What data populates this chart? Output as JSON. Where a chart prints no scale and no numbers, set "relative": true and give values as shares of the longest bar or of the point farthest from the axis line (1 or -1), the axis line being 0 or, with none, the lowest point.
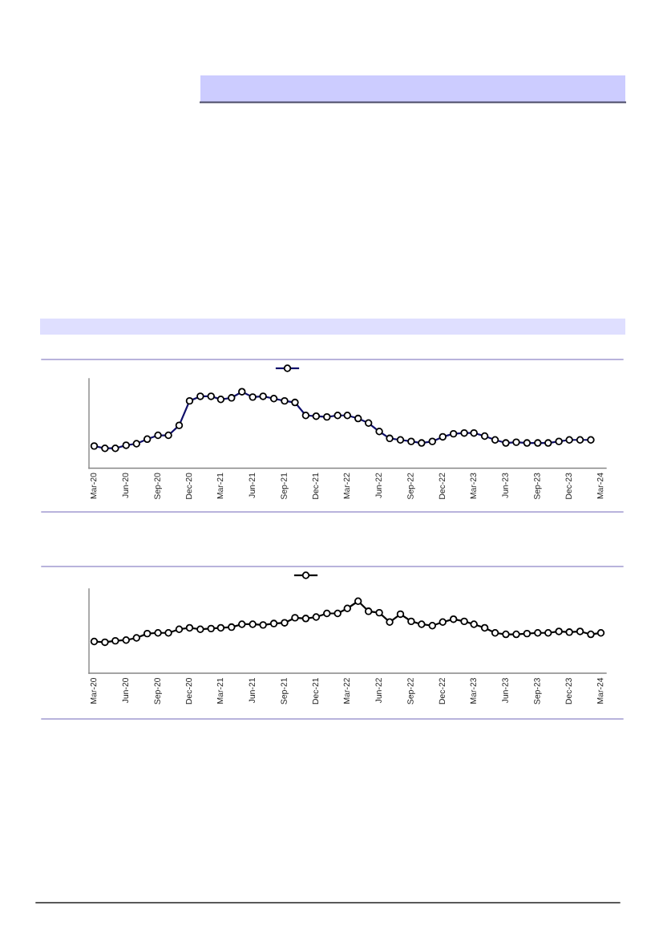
{
  "chart_data": [
    {
      "type": "line",
      "relative": true,
      "marker": "circle",
      "tick_labels": "x",
      "x": [
        "2020-03",
        "2020-04",
        "2020-05",
        "2020-06",
        "2020-07",
        "2020-08",
        "2020-09",
        "2020-10",
        "2020-11",
        "2020-12",
        "2021-01",
        "2021-02",
        "2021-03",
        "2021-04",
        "2021-05",
        "2021-06",
        "2021-07",
        "2021-08",
        "2021-09",
        "2021-10",
        "2021-11",
        "2021-12",
        "2022-01",
        "2022-02",
        "2022-03",
        "2022-04",
        "2022-05",
        "2022-06",
        "2022-07",
        "2022-08",
        "2022-09",
        "2022-10",
        "2022-11",
        "2022-12",
        "2023-01",
        "2023-02",
        "2023-03",
        "2023-04",
        "2023-05",
        "2023-06",
        "2023-07",
        "2023-08",
        "2023-09",
        "2023-10",
        "2023-11",
        "2023-12",
        "2024-01",
        "2024-02"
      ],
      "xlim": [
        "2020-02-15",
        "2024-03-16"
      ],
      "xticks": [
        {
          "value": "2020-03",
          "label": "Mar-20"
        },
        {
          "value": "2020-06",
          "label": "Jun-20"
        },
        {
          "value": "2020-09",
          "label": "Sep-20"
        },
        {
          "value": "2020-12",
          "label": "Dec-20"
        },
        {
          "value": "2021-03",
          "label": "Mar-21"
        },
        {
          "value": "2021-06",
          "label": "Jun-21"
        },
        {
          "value": "2021-09",
          "label": "Sep-21"
        },
        {
          "value": "2021-12",
          "label": "Dec-21"
        },
        {
          "value": "2022-03",
          "label": "Mar-22"
        },
        {
          "value": "2022-06",
          "label": "Jun-22"
        },
        {
          "value": "2022-09",
          "label": "Sep-22"
        },
        {
          "value": "2022-12",
          "label": "Dec-22"
        },
        {
          "value": "2023-03",
          "label": "Mar-23"
        },
        {
          "value": "2023-06",
          "label": "Jun-23"
        },
        {
          "value": "2023-09",
          "label": "Sep-23"
        },
        {
          "value": "2023-12",
          "label": "Dec-23"
        },
        {
          "value": "2024-03",
          "label": "Mar-24"
        }
      ],
      "series": [
        {
          "color": "#10106a",
          "values": [
            0.29,
            0.26,
            0.26,
            0.3,
            0.32,
            0.38,
            0.43,
            0.43,
            0.56,
            0.88,
            0.94,
            0.94,
            0.9,
            0.92,
            1.0,
            0.93,
            0.94,
            0.91,
            0.88,
            0.86,
            0.69,
            0.68,
            0.67,
            0.69,
            0.69,
            0.65,
            0.59,
            0.48,
            0.39,
            0.37,
            0.35,
            0.33,
            0.35,
            0.41,
            0.45,
            0.46,
            0.46,
            0.42,
            0.37,
            0.33,
            0.34,
            0.33,
            0.33,
            0.33,
            0.35,
            0.37,
            0.37,
            0.37
          ]
        }
      ]
    },
    {
      "type": "line",
      "relative": true,
      "marker": "circle",
      "tick_labels": "x",
      "x": [
        "2020-03",
        "2020-04",
        "2020-05",
        "2020-06",
        "2020-07",
        "2020-08",
        "2020-09",
        "2020-10",
        "2020-11",
        "2020-12",
        "2021-01",
        "2021-02",
        "2021-03",
        "2021-04",
        "2021-05",
        "2021-06",
        "2021-07",
        "2021-08",
        "2021-09",
        "2021-10",
        "2021-11",
        "2021-12",
        "2022-01",
        "2022-02",
        "2022-03",
        "2022-04",
        "2022-05",
        "2022-06",
        "2022-07",
        "2022-08",
        "2022-09",
        "2022-10",
        "2022-11",
        "2022-12",
        "2023-01",
        "2023-02",
        "2023-03",
        "2023-04",
        "2023-05",
        "2023-06",
        "2023-07",
        "2023-08",
        "2023-09",
        "2023-10",
        "2023-11",
        "2023-12",
        "2024-01",
        "2024-02",
        "2024-03"
      ],
      "xlim": [
        "2020-02-15",
        "2024-03-16"
      ],
      "xticks": [
        {
          "value": "2020-03",
          "label": "Mar-20"
        },
        {
          "value": "2020-06",
          "label": "Jun-20"
        },
        {
          "value": "2020-09",
          "label": "Sep-20"
        },
        {
          "value": "2020-12",
          "label": "Dec-20"
        },
        {
          "value": "2021-03",
          "label": "Mar-21"
        },
        {
          "value": "2021-06",
          "label": "Jun-21"
        },
        {
          "value": "2021-09",
          "label": "Sep-21"
        },
        {
          "value": "2021-12",
          "label": "Dec-21"
        },
        {
          "value": "2022-03",
          "label": "Mar-22"
        },
        {
          "value": "2022-06",
          "label": "Jun-22"
        },
        {
          "value": "2022-09",
          "label": "Sep-22"
        },
        {
          "value": "2022-12",
          "label": "Dec-22"
        },
        {
          "value": "2023-03",
          "label": "Mar-23"
        },
        {
          "value": "2023-06",
          "label": "Jun-23"
        },
        {
          "value": "2023-09",
          "label": "Sep-23"
        },
        {
          "value": "2023-12",
          "label": "Dec-23"
        },
        {
          "value": "2024-03",
          "label": "Mar-24"
        }
      ],
      "series": [
        {
          "color": "#000000",
          "values": [
            0.44,
            0.43,
            0.45,
            0.46,
            0.49,
            0.55,
            0.56,
            0.56,
            0.61,
            0.63,
            0.61,
            0.62,
            0.63,
            0.64,
            0.68,
            0.68,
            0.67,
            0.69,
            0.7,
            0.77,
            0.76,
            0.78,
            0.83,
            0.83,
            0.9,
            1.0,
            0.86,
            0.84,
            0.71,
            0.82,
            0.72,
            0.68,
            0.66,
            0.71,
            0.75,
            0.72,
            0.68,
            0.63,
            0.56,
            0.54,
            0.54,
            0.55,
            0.56,
            0.56,
            0.58,
            0.57,
            0.58,
            0.54,
            0.56
          ]
        }
      ]
    }
  ]
}
